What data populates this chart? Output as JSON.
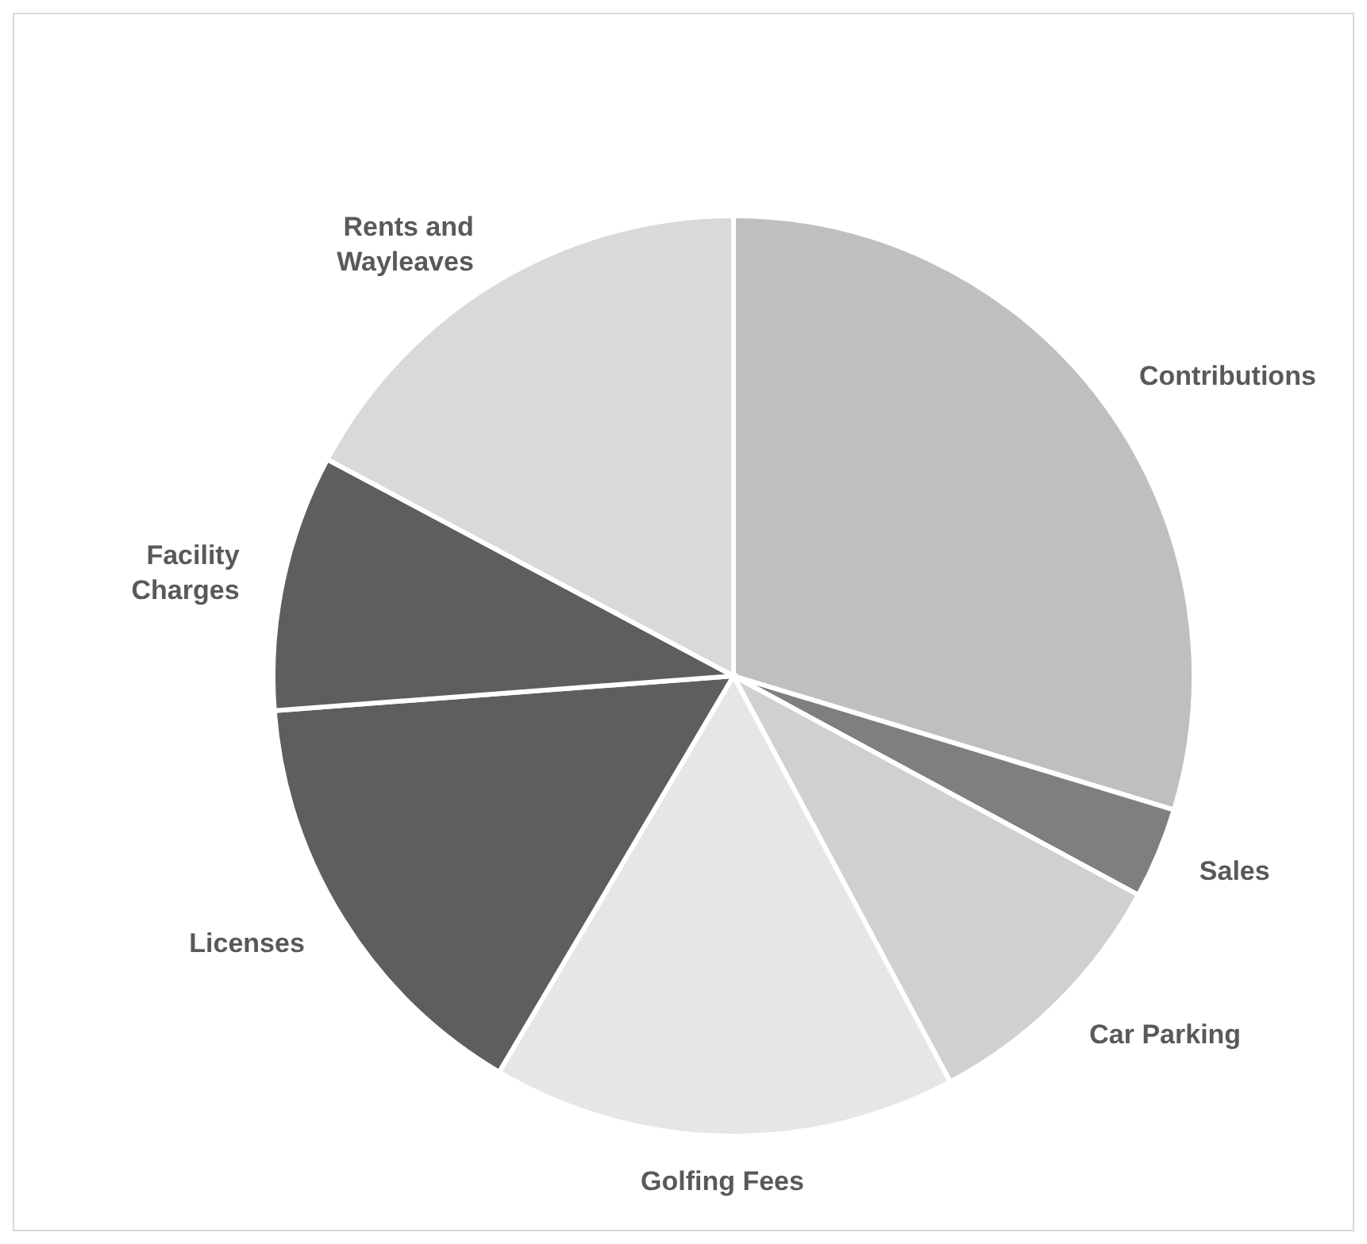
{
  "chart_data": {
    "type": "pie",
    "categories": [
      "Contributions",
      "Sales",
      "Car Parking",
      "Golfing Fees",
      "Licenses",
      "Facility Charges",
      "Rents and Wayleaves"
    ],
    "values": [
      29.7,
      3.2,
      9.3,
      16.3,
      15.3,
      9.0,
      17.2
    ],
    "colors": [
      "#bfbfbf",
      "#7f7f7f",
      "#d0d0d0",
      "#e6e6e6",
      "#5e5e5e",
      "#5e5e5e",
      "#d9d9d9"
    ],
    "legend": false
  }
}
